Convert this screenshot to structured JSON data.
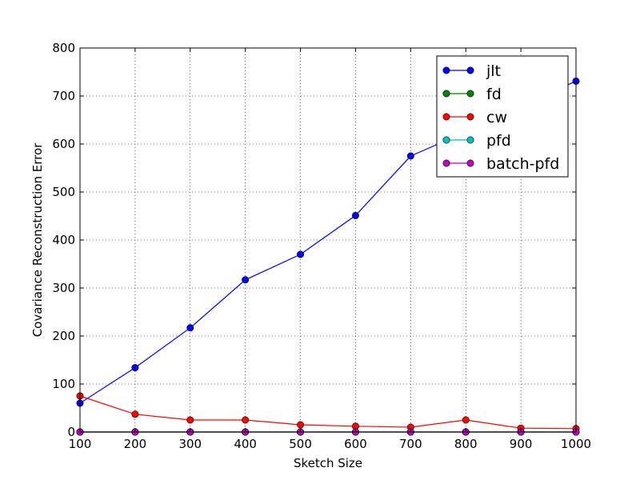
{
  "chart_data": {
    "type": "line",
    "title": "",
    "xlabel": "Sketch Size",
    "ylabel": "Covariance Reconstruction Error",
    "xlim": [
      100,
      1000
    ],
    "ylim": [
      0,
      800
    ],
    "x_ticks": [
      100,
      200,
      300,
      400,
      500,
      600,
      700,
      800,
      900,
      1000
    ],
    "y_ticks": [
      0,
      100,
      200,
      300,
      400,
      500,
      600,
      700,
      800
    ],
    "grid": true,
    "legend_position": "top-right",
    "x": [
      100,
      200,
      300,
      400,
      500,
      600,
      700,
      800,
      900,
      1000
    ],
    "series": [
      {
        "name": "jlt",
        "color": "#0000ff",
        "values": [
          60,
          134,
          217,
          317,
          370,
          451,
          575,
          625,
          680,
          731
        ]
      },
      {
        "name": "fd",
        "color": "#008000",
        "values": [
          0,
          0,
          0,
          0,
          0,
          0,
          0,
          0,
          0,
          0
        ]
      },
      {
        "name": "cw",
        "color": "#ff0000",
        "values": [
          75,
          37,
          25,
          25,
          15,
          12,
          10,
          25,
          8,
          7
        ]
      },
      {
        "name": "pfd",
        "color": "#00bfbf",
        "values": [
          0,
          0,
          0,
          0,
          0,
          0,
          0,
          0,
          0,
          0
        ]
      },
      {
        "name": "batch-pfd",
        "color": "#bf00bf",
        "values": [
          0,
          0,
          0,
          0,
          0,
          0,
          0,
          0,
          0,
          0
        ]
      }
    ]
  }
}
